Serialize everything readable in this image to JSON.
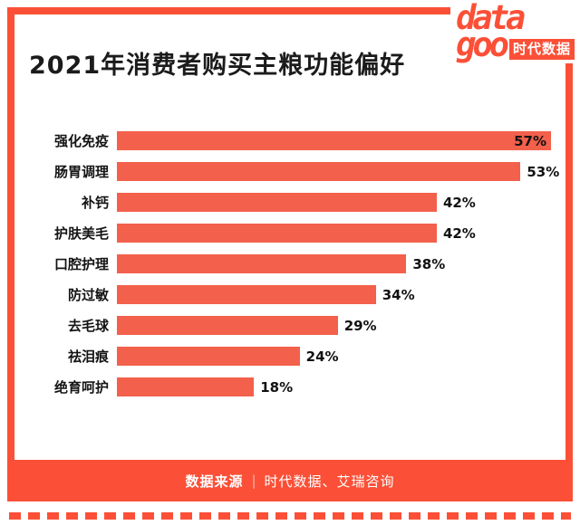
{
  "logo": {
    "line1": "data",
    "line2": "goo",
    "badge": "时代数据"
  },
  "chart_data": {
    "type": "bar",
    "orientation": "horizontal",
    "title": "2021年消费者购买主粮功能偏好",
    "categories": [
      "强化免疫",
      "肠胃调理",
      "补钙",
      "护肤美毛",
      "口腔护理",
      "防过敏",
      "去毛球",
      "祛泪痕",
      "绝育呵护"
    ],
    "values": [
      57,
      53,
      42,
      42,
      38,
      34,
      29,
      24,
      18
    ],
    "value_suffix": "%",
    "xlim": [
      0,
      57
    ],
    "grid": false,
    "legend": false,
    "bar_color": "#F3604B"
  },
  "footer": {
    "source_label": "数据来源",
    "separator": "|",
    "source_text": "时代数据、艾瑞咨询"
  },
  "colors": {
    "accent": "#FB5037",
    "bar": "#F3604B",
    "text": "#1b1b1b",
    "footer_text": "#ffffff"
  }
}
